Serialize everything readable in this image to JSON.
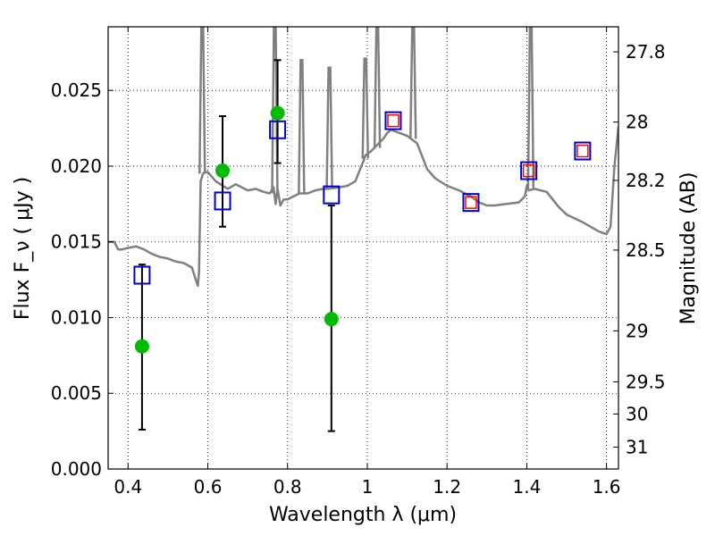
{
  "chart_data": {
    "type": "scatter",
    "xlabel": "Wavelength  λ (μm)",
    "ylabel": "Flux  F_ν  ( μJy )",
    "y2label": "Magnitude (AB)",
    "xlim": [
      0.35,
      1.63
    ],
    "ylim": [
      0.0,
      0.0292
    ],
    "grid": true,
    "x_ticks": [
      {
        "v": 0.4,
        "label": "0.4"
      },
      {
        "v": 0.6,
        "label": "0.6"
      },
      {
        "v": 0.8,
        "label": "0.8"
      },
      {
        "v": 1.0,
        "label": "1"
      },
      {
        "v": 1.2,
        "label": "1.2"
      },
      {
        "v": 1.4,
        "label": "1.4"
      },
      {
        "v": 1.6,
        "label": "1.6"
      }
    ],
    "y_ticks": [
      {
        "v": 0.0,
        "label": "0.000"
      },
      {
        "v": 0.005,
        "label": "0.005"
      },
      {
        "v": 0.01,
        "label": "0.010"
      },
      {
        "v": 0.015,
        "label": "0.015"
      },
      {
        "v": 0.02,
        "label": "0.020"
      },
      {
        "v": 0.025,
        "label": "0.025"
      }
    ],
    "mag_ticks": [
      {
        "v": 27.8,
        "label": "27.8"
      },
      {
        "v": 28.0,
        "label": "28"
      },
      {
        "v": 28.2,
        "label": "28.2"
      },
      {
        "v": 28.5,
        "label": "28.5"
      },
      {
        "v": 29.0,
        "label": "29"
      },
      {
        "v": 29.5,
        "label": "29.5"
      },
      {
        "v": 30.0,
        "label": "30"
      },
      {
        "v": 31.0,
        "label": "31"
      }
    ],
    "series": [
      {
        "kind": "spectrum",
        "color": "#808080",
        "x": [
          0.35,
          0.365,
          0.375,
          0.385,
          0.4,
          0.42,
          0.44,
          0.46,
          0.48,
          0.5,
          0.52,
          0.54,
          0.56,
          0.57,
          0.575,
          0.578,
          0.582,
          0.588,
          0.592,
          0.6,
          0.62,
          0.65,
          0.67,
          0.7,
          0.72,
          0.74,
          0.755,
          0.765,
          0.77,
          0.775,
          0.782,
          0.79,
          0.8,
          0.83,
          0.85,
          0.87,
          0.89,
          0.9,
          0.93,
          0.95,
          0.97,
          0.985,
          0.99,
          0.995,
          1.01,
          1.04,
          1.05,
          1.06,
          1.08,
          1.1,
          1.125,
          1.15,
          1.17,
          1.2,
          1.23,
          1.26,
          1.28,
          1.3,
          1.32,
          1.35,
          1.38,
          1.395,
          1.4,
          1.405,
          1.42,
          1.45,
          1.48,
          1.5,
          1.54,
          1.58,
          1.6,
          1.61,
          1.62,
          1.63
        ],
        "y": [
          0.015,
          0.015,
          0.0145,
          0.0145,
          0.0146,
          0.0147,
          0.0145,
          0.0142,
          0.014,
          0.0139,
          0.0137,
          0.0136,
          0.0133,
          0.0125,
          0.0121,
          0.013,
          0.019,
          0.0195,
          0.0196,
          0.0196,
          0.019,
          0.0185,
          0.0188,
          0.0184,
          0.0185,
          0.0183,
          0.0182,
          0.0186,
          0.0175,
          0.0185,
          0.0174,
          0.0178,
          0.0178,
          0.0182,
          0.0182,
          0.0184,
          0.0185,
          0.0185,
          0.0186,
          0.0187,
          0.019,
          0.02,
          0.0203,
          0.0207,
          0.021,
          0.0218,
          0.0222,
          0.0224,
          0.0222,
          0.022,
          0.0215,
          0.0198,
          0.0192,
          0.0187,
          0.0184,
          0.018,
          0.0176,
          0.0174,
          0.0174,
          0.0175,
          0.0176,
          0.018,
          0.0187,
          0.0184,
          0.0185,
          0.0183,
          0.0173,
          0.0168,
          0.0163,
          0.0157,
          0.0155,
          0.016,
          0.02,
          0.0226
        ]
      },
      {
        "kind": "emission_lines",
        "color": "#808080",
        "lines": [
          {
            "x": 0.586,
            "base": 0.0195,
            "peak": 0.0292
          },
          {
            "x": 0.768,
            "base": 0.0182,
            "peak": 0.0292
          },
          {
            "x": 0.835,
            "base": 0.0182,
            "peak": 0.027
          },
          {
            "x": 0.905,
            "base": 0.0185,
            "peak": 0.0265
          },
          {
            "x": 0.995,
            "base": 0.0205,
            "peak": 0.0271
          },
          {
            "x": 1.025,
            "base": 0.0212,
            "peak": 0.0292
          },
          {
            "x": 1.115,
            "base": 0.0218,
            "peak": 0.0292
          },
          {
            "x": 1.41,
            "base": 0.0185,
            "peak": 0.0292
          }
        ]
      },
      {
        "kind": "points_with_errors",
        "marker": "circle",
        "color": "#00bb00",
        "points": [
          {
            "x": 0.435,
            "y": 0.0081,
            "lo": 0.0026,
            "hi": 0.0135
          },
          {
            "x": 0.637,
            "y": 0.0197,
            "lo": 0.016,
            "hi": 0.0233
          },
          {
            "x": 0.775,
            "y": 0.0235,
            "lo": 0.0202,
            "hi": 0.027
          },
          {
            "x": 0.91,
            "y": 0.0099,
            "lo": 0.0025,
            "hi": 0.0174
          }
        ]
      },
      {
        "kind": "points",
        "marker": "square",
        "color": "#0000cc",
        "points": [
          {
            "x": 0.435,
            "y": 0.0128
          },
          {
            "x": 0.637,
            "y": 0.0177
          },
          {
            "x": 0.775,
            "y": 0.0224
          },
          {
            "x": 0.91,
            "y": 0.0181
          },
          {
            "x": 1.065,
            "y": 0.023
          },
          {
            "x": 1.26,
            "y": 0.0176
          },
          {
            "x": 1.405,
            "y": 0.0197
          },
          {
            "x": 1.54,
            "y": 0.021
          }
        ]
      },
      {
        "kind": "points",
        "marker": "small-square",
        "color": "#ff0000",
        "points": [
          {
            "x": 1.065,
            "y": 0.023
          },
          {
            "x": 1.26,
            "y": 0.0176
          },
          {
            "x": 1.405,
            "y": 0.0197
          },
          {
            "x": 1.54,
            "y": 0.021
          }
        ]
      }
    ]
  }
}
